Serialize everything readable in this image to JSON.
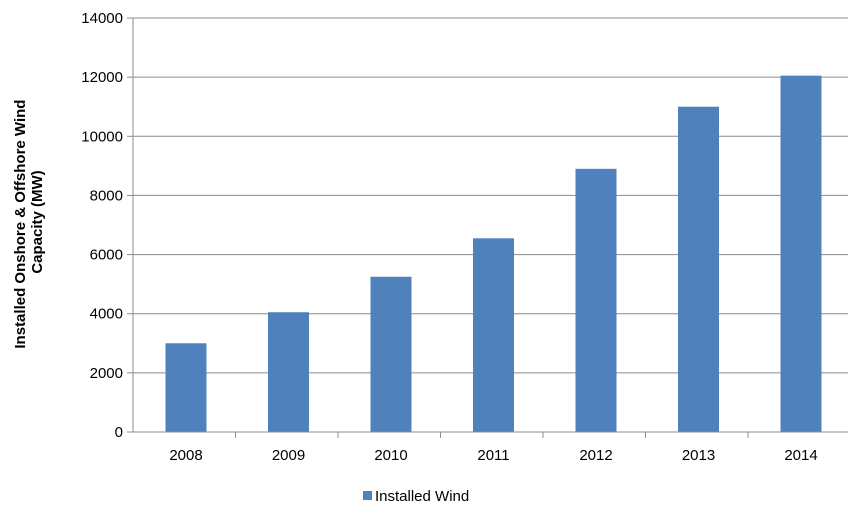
{
  "chart_data": {
    "type": "bar",
    "categories": [
      "2008",
      "2009",
      "2010",
      "2011",
      "2012",
      "2013",
      "2014"
    ],
    "series": [
      {
        "name": "Installed Wind",
        "values": [
          3000,
          4050,
          5250,
          6550,
          8900,
          11000,
          12050
        ],
        "color": "#4F81BD"
      }
    ],
    "ylabel_lines": [
      "Installed Onshore & Offshore Wind",
      "Capacity (MW)"
    ],
    "xlabel": "",
    "ylim": [
      0,
      14000
    ],
    "yticks": [
      0,
      2000,
      4000,
      6000,
      8000,
      10000,
      12000,
      14000
    ],
    "grid": true,
    "legend_position": "bottom"
  }
}
